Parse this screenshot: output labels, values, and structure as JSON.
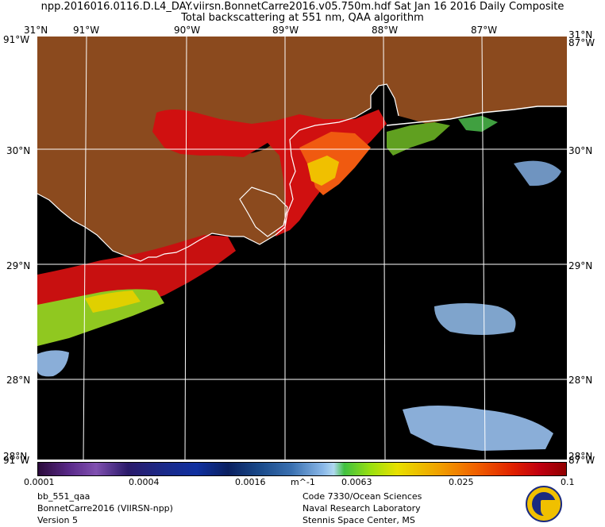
{
  "header": {
    "line1": "npp.2016016.0116.D.L4_DAY.viirsn.BonnetCarre2016.v05.750m.hdf    Sat Jan 16 2016 Daily Composite",
    "line2": "Total backscattering at 551 nm, QAA algorithm"
  },
  "map": {
    "lon_labels": [
      "91°W",
      "90°W",
      "89°W",
      "88°W",
      "87°W"
    ],
    "lat_labels": [
      "30°N",
      "29°N",
      "28°N"
    ],
    "corner_top_left": "31°N",
    "corner_top_left_2": "91°W",
    "corner_top_right": "31°N",
    "corner_top_right_2": "87°W",
    "corner_bottom_left": "28°N",
    "corner_bottom_left_2": "91°W",
    "corner_bottom_right": "28°N",
    "corner_bottom_right_2": "87°W",
    "land_color": "#8b4a1e",
    "water_color": "#000000",
    "coastline_color": "#ffffff"
  },
  "colorbar": {
    "tick_labels": [
      "0.0001",
      "0.0004",
      "0.0016",
      "0.0063",
      "0.025",
      "0.1"
    ],
    "unit": "m^-1",
    "scale": "log"
  },
  "footer": {
    "left": [
      "bb_551_qaa",
      "BonnetCarre2016 (VIIRSN-npp)",
      "Version 5"
    ],
    "right": [
      "Code 7330/Ocean Sciences",
      "Naval Research Laboratory",
      "Stennis Space Center, MS"
    ],
    "logo": "Naval Research Laboratory seal"
  }
}
